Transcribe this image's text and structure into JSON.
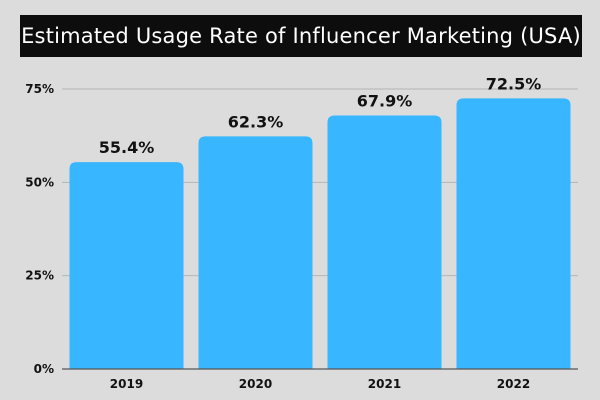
{
  "title": "Estimated Usage Rate of Influencer Marketing (USA)",
  "colors": {
    "bar": "#38b6ff",
    "background": "#dcdcdc",
    "title_background": "#0d0d0d",
    "title_text": "#ffffff",
    "grid": "#b5b5b5",
    "axis": "#555555"
  },
  "chart_data": {
    "type": "bar",
    "categories": [
      "2019",
      "2020",
      "2021",
      "2022"
    ],
    "values": [
      55.4,
      62.3,
      67.9,
      72.5
    ],
    "data_labels": [
      "55.4%",
      "62.3%",
      "67.9%",
      "72.5%"
    ],
    "yticks": [
      {
        "value": 0,
        "label": "0%"
      },
      {
        "value": 25,
        "label": "25%"
      },
      {
        "value": 50,
        "label": "50%"
      },
      {
        "value": 75,
        "label": "75%"
      }
    ],
    "ylim": [
      0,
      75
    ],
    "grid": true,
    "legend": "none",
    "xlabel": "",
    "ylabel": ""
  }
}
